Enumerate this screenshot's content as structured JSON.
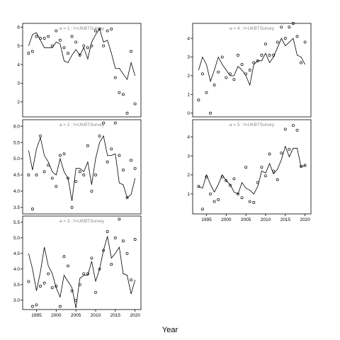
{
  "chart_data": [
    {
      "type": "scatter+line",
      "title": "a = 1  :  f=UKBTSurvey",
      "ylim": [
        1.2,
        6.2
      ],
      "yticks": [
        2,
        3,
        4,
        5,
        6
      ],
      "xlim": [
        1991.5,
        2021.5
      ],
      "xticks": [],
      "x": [
        1993,
        1994,
        1995,
        1996,
        1997,
        1998,
        1999,
        2000,
        2001,
        2002,
        2003,
        2004,
        2005,
        2006,
        2007,
        2008,
        2009,
        2010,
        2011,
        2012,
        2013,
        2014,
        2015,
        2016,
        2017,
        2018,
        2019,
        2020
      ],
      "observed": [
        4.6,
        4.7,
        5.5,
        5.4,
        5.4,
        5.5,
        5.0,
        5.8,
        5.3,
        4.9,
        4.6,
        5.5,
        5.2,
        4.5,
        5.0,
        4.9,
        5.0,
        5.8,
        5.9,
        5.0,
        5.8,
        5.9,
        3.3,
        2.5,
        2.4,
        1.4,
        4.7,
        1.9
      ],
      "fitted": [
        5.0,
        5.6,
        5.7,
        5.3,
        4.9,
        4.9,
        4.9,
        5.2,
        5.1,
        4.2,
        4.1,
        4.5,
        4.8,
        4.5,
        4.9,
        4.3,
        5.2,
        5.6,
        5.9,
        5.2,
        5.3,
        4.6,
        3.8,
        3.8,
        3.5,
        3.2,
        4.1,
        3.4
      ]
    },
    {
      "type": "scatter+line",
      "title": "a = 2  :  f=UKBTSurvey",
      "ylim": [
        3.3,
        6.2
      ],
      "yticks": [
        3.5,
        4.0,
        4.5,
        5.0,
        5.5,
        6.0
      ],
      "xlim": [
        1991.5,
        2021.5
      ],
      "xticks": [],
      "x": [
        1993,
        1994,
        1995,
        1996,
        1997,
        1998,
        1999,
        2000,
        2001,
        2002,
        2003,
        2004,
        2005,
        2006,
        2007,
        2008,
        2009,
        2010,
        2011,
        2012,
        2013,
        2014,
        2015,
        2016,
        2017,
        2018,
        2019,
        2020
      ],
      "observed": [
        4.5,
        3.45,
        4.5,
        5.7,
        4.6,
        4.8,
        4.4,
        4.15,
        5.1,
        5.15,
        4.4,
        3.5,
        4.3,
        4.6,
        4.5,
        5.4,
        4.0,
        4.5,
        5.7,
        6.1,
        4.9,
        5.3,
        6.1,
        5.1,
        4.65,
        3.8,
        4.95,
        4.7
      ],
      "fitted": [
        5.25,
        4.65,
        5.3,
        5.65,
        5.1,
        4.9,
        4.6,
        4.5,
        5.0,
        4.6,
        4.4,
        3.7,
        4.7,
        4.7,
        4.6,
        4.9,
        4.2,
        5.0,
        5.5,
        5.7,
        5.1,
        5.1,
        5.15,
        4.25,
        4.2,
        3.8,
        3.9,
        4.4
      ]
    },
    {
      "type": "scatter+line",
      "title": "a = 3  :  f=UKBTSurvey",
      "ylim": [
        2.7,
        5.7
      ],
      "yticks": [
        3.0,
        3.5,
        4.0,
        4.5,
        5.0,
        5.5
      ],
      "xlim": [
        1991.5,
        2021.5
      ],
      "xticks": [
        1995,
        2000,
        2005,
        2010,
        2015,
        2020
      ],
      "x": [
        1993,
        1994,
        1995,
        1996,
        1997,
        1998,
        1999,
        2000,
        2001,
        2002,
        2003,
        2004,
        2005,
        2006,
        2007,
        2008,
        2009,
        2010,
        2011,
        2012,
        2013,
        2014,
        2015,
        2016,
        2017,
        2018,
        2019,
        2020
      ],
      "observed": [
        3.6,
        2.8,
        2.85,
        3.45,
        3.55,
        3.85,
        3.4,
        3.45,
        2.8,
        4.4,
        4.1,
        3.3,
        3.0,
        3.5,
        3.85,
        3.85,
        4.35,
        3.25,
        4.0,
        4.6,
        5.2,
        4.15,
        5.0,
        5.6,
        4.9,
        4.5,
        3.65,
        4.95
      ],
      "fitted": [
        4.5,
        4.0,
        3.3,
        3.9,
        4.7,
        4.1,
        3.85,
        3.4,
        3.1,
        3.8,
        3.6,
        3.4,
        2.75,
        3.7,
        3.8,
        3.8,
        4.25,
        3.6,
        4.0,
        4.6,
        5.05,
        4.35,
        4.5,
        4.7,
        3.85,
        3.8,
        3.2,
        3.65
      ]
    },
    {
      "type": "scatter+line",
      "title": "a = 4  :  f=UKBTSurvey",
      "ylim": [
        -0.2,
        4.8
      ],
      "yticks": [
        0,
        1,
        2,
        3,
        4
      ],
      "xlim": [
        1991.5,
        2021.5
      ],
      "xticks": [],
      "x": [
        1993,
        1994,
        1995,
        1996,
        1997,
        1998,
        1999,
        2000,
        2001,
        2002,
        2003,
        2004,
        2005,
        2006,
        2007,
        2008,
        2009,
        2010,
        2011,
        2012,
        2013,
        2014,
        2015,
        2016,
        2017,
        2018,
        2019,
        2020
      ],
      "observed": [
        0.7,
        2.1,
        1.1,
        0.0,
        1.5,
        2.2,
        3.0,
        1.9,
        2.1,
        1.8,
        3.1,
        2.6,
        2.1,
        2.3,
        2.7,
        2.8,
        3.1,
        3.7,
        3.1,
        3.1,
        3.8,
        4.6,
        4.0,
        4.6,
        4.8,
        4.1,
        2.7,
        3.8
      ],
      "fitted": [
        2.3,
        3.0,
        2.6,
        1.7,
        2.3,
        3.0,
        2.6,
        2.3,
        2.0,
        2.0,
        2.5,
        2.3,
        2.0,
        1.5,
        2.6,
        2.8,
        2.8,
        3.2,
        2.7,
        3.0,
        3.5,
        4.0,
        3.6,
        3.8,
        4.0,
        3.1,
        3.0,
        2.6
      ]
    },
    {
      "type": "scatter+line",
      "title": "a = 5  :  f=UKBTSurvey",
      "ylim": [
        -0.05,
        4.9
      ],
      "yticks": [
        1,
        2,
        3,
        4
      ],
      "xlim": [
        1991.5,
        2021.5
      ],
      "xticks": [
        1995,
        2000,
        2005,
        2010,
        2015,
        2020
      ],
      "x": [
        1993,
        1994,
        1995,
        1996,
        1997,
        1998,
        1999,
        2000,
        2001,
        2002,
        2003,
        2004,
        2005,
        2006,
        2007,
        2008,
        2009,
        2010,
        2011,
        2012,
        2013,
        2014,
        2015,
        2016,
        2017,
        2018,
        2019,
        2020
      ],
      "observed": [
        1.4,
        0.2,
        1.9,
        1.0,
        0.6,
        0.7,
        1.9,
        1.7,
        1.45,
        1.8,
        1.0,
        0.8,
        2.4,
        0.6,
        0.55,
        1.6,
        2.4,
        1.95,
        3.1,
        2.2,
        1.75,
        3.15,
        4.4,
        3.35,
        4.6,
        4.35,
        2.45,
        2.5
      ],
      "fitted": [
        1.4,
        1.3,
        2.0,
        1.5,
        1.1,
        1.5,
        2.0,
        1.7,
        1.5,
        1.1,
        1.0,
        1.6,
        1.3,
        1.2,
        1.0,
        1.4,
        2.2,
        2.1,
        2.6,
        2.05,
        2.3,
        2.8,
        3.5,
        2.95,
        3.4,
        3.4,
        2.4,
        2.5
      ]
    }
  ],
  "xlabel": "Year"
}
